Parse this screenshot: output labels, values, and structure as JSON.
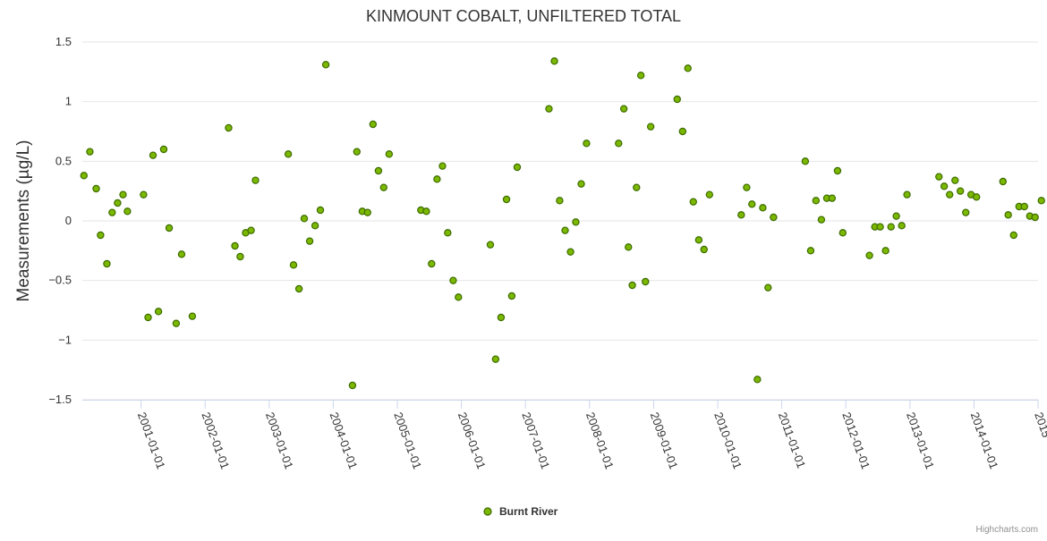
{
  "chart_data": {
    "type": "scatter",
    "title": "KINMOUNT COBALT, UNFILTERED TOTAL",
    "xlabel": "",
    "ylabel": "Measurements (µg/L)",
    "x_type": "date",
    "xlim": [
      "2000-02-01",
      "2015-01-01"
    ],
    "ylim": [
      -1.5,
      1.5
    ],
    "y_ticks": [
      -1.5,
      -1,
      -0.5,
      0,
      0.5,
      1,
      1.5
    ],
    "y_tick_labels": [
      "−1.5",
      "−1",
      "−0.5",
      "0",
      "0.5",
      "1",
      "1.5"
    ],
    "x_ticks": [
      "2001-01-01",
      "2002-01-01",
      "2003-01-01",
      "2004-01-01",
      "2005-01-01",
      "2006-01-01",
      "2007-01-01",
      "2008-01-01",
      "2009-01-01",
      "2010-01-01",
      "2011-01-01",
      "2012-01-01",
      "2013-01-01",
      "2014-01-01",
      "2015-01-01"
    ],
    "x_tick_labels": [
      "2001-01-01",
      "2002-01-01",
      "2003-01-01",
      "2004-01-01",
      "2005-01-01",
      "2006-01-01",
      "2007-01-01",
      "2008-01-01",
      "2009-01-01",
      "2010-01-01",
      "2011-01-01",
      "2012-01-01",
      "2013-01-01",
      "2014-01-01",
      "2015"
    ],
    "grid": true,
    "legend_position": "bottom-center",
    "series": [
      {
        "name": "Burnt River",
        "color": "#7cb800",
        "points": [
          {
            "x": "2000-02-10",
            "y": 0.38
          },
          {
            "x": "2000-03-15",
            "y": 0.58
          },
          {
            "x": "2000-04-20",
            "y": 0.27
          },
          {
            "x": "2000-05-15",
            "y": -0.12
          },
          {
            "x": "2000-06-20",
            "y": -0.36
          },
          {
            "x": "2000-07-20",
            "y": 0.07
          },
          {
            "x": "2000-08-20",
            "y": 0.15
          },
          {
            "x": "2000-09-20",
            "y": 0.22
          },
          {
            "x": "2000-10-15",
            "y": 0.08
          },
          {
            "x": "2001-01-15",
            "y": 0.22
          },
          {
            "x": "2001-02-10",
            "y": -0.81
          },
          {
            "x": "2001-03-10",
            "y": 0.55
          },
          {
            "x": "2001-04-10",
            "y": -0.76
          },
          {
            "x": "2001-05-10",
            "y": 0.6
          },
          {
            "x": "2001-06-10",
            "y": -0.06
          },
          {
            "x": "2001-07-20",
            "y": -0.86
          },
          {
            "x": "2001-08-20",
            "y": -0.28
          },
          {
            "x": "2001-10-20",
            "y": -0.8
          },
          {
            "x": "2002-05-15",
            "y": 0.78
          },
          {
            "x": "2002-06-20",
            "y": -0.21
          },
          {
            "x": "2002-07-20",
            "y": -0.3
          },
          {
            "x": "2002-08-20",
            "y": -0.1
          },
          {
            "x": "2002-09-20",
            "y": -0.08
          },
          {
            "x": "2002-10-15",
            "y": 0.34
          },
          {
            "x": "2003-04-20",
            "y": 0.56
          },
          {
            "x": "2003-05-20",
            "y": -0.37
          },
          {
            "x": "2003-06-20",
            "y": -0.57
          },
          {
            "x": "2003-07-20",
            "y": 0.02
          },
          {
            "x": "2003-08-20",
            "y": -0.17
          },
          {
            "x": "2003-09-20",
            "y": -0.04
          },
          {
            "x": "2003-10-20",
            "y": 0.09
          },
          {
            "x": "2003-11-20",
            "y": 1.31
          },
          {
            "x": "2004-04-20",
            "y": -1.38
          },
          {
            "x": "2004-05-15",
            "y": 0.58
          },
          {
            "x": "2004-06-15",
            "y": 0.08
          },
          {
            "x": "2004-07-15",
            "y": 0.07
          },
          {
            "x": "2004-08-15",
            "y": 0.81
          },
          {
            "x": "2004-09-15",
            "y": 0.42
          },
          {
            "x": "2004-10-15",
            "y": 0.28
          },
          {
            "x": "2004-11-15",
            "y": 0.56
          },
          {
            "x": "2005-05-15",
            "y": 0.09
          },
          {
            "x": "2005-06-15",
            "y": 0.08
          },
          {
            "x": "2005-07-15",
            "y": -0.36
          },
          {
            "x": "2005-08-15",
            "y": 0.35
          },
          {
            "x": "2005-09-15",
            "y": 0.46
          },
          {
            "x": "2005-10-15",
            "y": -0.1
          },
          {
            "x": "2005-11-15",
            "y": -0.5
          },
          {
            "x": "2005-12-15",
            "y": -0.64
          },
          {
            "x": "2006-06-15",
            "y": -0.2
          },
          {
            "x": "2006-07-15",
            "y": -1.16
          },
          {
            "x": "2006-08-15",
            "y": -0.81
          },
          {
            "x": "2006-09-15",
            "y": 0.18
          },
          {
            "x": "2006-10-15",
            "y": -0.63
          },
          {
            "x": "2006-11-15",
            "y": 0.45
          },
          {
            "x": "2007-05-15",
            "y": 0.94
          },
          {
            "x": "2007-06-15",
            "y": 1.34
          },
          {
            "x": "2007-07-15",
            "y": 0.17
          },
          {
            "x": "2007-08-15",
            "y": -0.08
          },
          {
            "x": "2007-09-15",
            "y": -0.26
          },
          {
            "x": "2007-10-15",
            "y": -0.01
          },
          {
            "x": "2007-11-15",
            "y": 0.31
          },
          {
            "x": "2007-12-15",
            "y": 0.65
          },
          {
            "x": "2008-06-15",
            "y": 0.65
          },
          {
            "x": "2008-07-15",
            "y": 0.94
          },
          {
            "x": "2008-08-10",
            "y": -0.22
          },
          {
            "x": "2008-09-01",
            "y": -0.54
          },
          {
            "x": "2008-09-25",
            "y": 0.28
          },
          {
            "x": "2008-10-20",
            "y": 1.22
          },
          {
            "x": "2008-11-15",
            "y": -0.51
          },
          {
            "x": "2008-12-15",
            "y": 0.79
          },
          {
            "x": "2009-05-15",
            "y": 1.02
          },
          {
            "x": "2009-06-15",
            "y": 0.75
          },
          {
            "x": "2009-07-15",
            "y": 1.28
          },
          {
            "x": "2009-08-15",
            "y": 0.16
          },
          {
            "x": "2009-09-15",
            "y": -0.16
          },
          {
            "x": "2009-10-15",
            "y": -0.24
          },
          {
            "x": "2009-11-15",
            "y": 0.22
          },
          {
            "x": "2010-05-15",
            "y": 0.05
          },
          {
            "x": "2010-06-15",
            "y": 0.28
          },
          {
            "x": "2010-07-15",
            "y": 0.14
          },
          {
            "x": "2010-08-15",
            "y": -1.33
          },
          {
            "x": "2010-09-15",
            "y": 0.11
          },
          {
            "x": "2010-10-15",
            "y": -0.56
          },
          {
            "x": "2010-11-15",
            "y": 0.03
          },
          {
            "x": "2011-05-15",
            "y": 0.5
          },
          {
            "x": "2011-06-15",
            "y": -0.25
          },
          {
            "x": "2011-07-15",
            "y": 0.17
          },
          {
            "x": "2011-08-15",
            "y": 0.01
          },
          {
            "x": "2011-09-15",
            "y": 0.19
          },
          {
            "x": "2011-10-15",
            "y": 0.19
          },
          {
            "x": "2011-11-15",
            "y": 0.42
          },
          {
            "x": "2011-12-15",
            "y": -0.1
          },
          {
            "x": "2012-05-15",
            "y": -0.29
          },
          {
            "x": "2012-06-15",
            "y": -0.05
          },
          {
            "x": "2012-07-15",
            "y": -0.05
          },
          {
            "x": "2012-08-15",
            "y": -0.25
          },
          {
            "x": "2012-09-15",
            "y": -0.05
          },
          {
            "x": "2012-10-15",
            "y": 0.04
          },
          {
            "x": "2012-11-15",
            "y": -0.04
          },
          {
            "x": "2012-12-15",
            "y": 0.22
          },
          {
            "x": "2013-06-15",
            "y": 0.37
          },
          {
            "x": "2013-07-15",
            "y": 0.29
          },
          {
            "x": "2013-08-15",
            "y": 0.22
          },
          {
            "x": "2013-09-15",
            "y": 0.34
          },
          {
            "x": "2013-10-15",
            "y": 0.25
          },
          {
            "x": "2013-11-15",
            "y": 0.07
          },
          {
            "x": "2013-12-15",
            "y": 0.22
          },
          {
            "x": "2014-01-15",
            "y": 0.2
          },
          {
            "x": "2014-06-15",
            "y": 0.33
          },
          {
            "x": "2014-07-15",
            "y": 0.05
          },
          {
            "x": "2014-08-15",
            "y": -0.12
          },
          {
            "x": "2014-09-15",
            "y": 0.12
          },
          {
            "x": "2014-10-15",
            "y": 0.12
          },
          {
            "x": "2014-11-15",
            "y": 0.04
          },
          {
            "x": "2014-12-15",
            "y": 0.03
          },
          {
            "x": "2015-01-20",
            "y": 0.17
          }
        ]
      }
    ]
  },
  "credits": "Highcharts.com"
}
